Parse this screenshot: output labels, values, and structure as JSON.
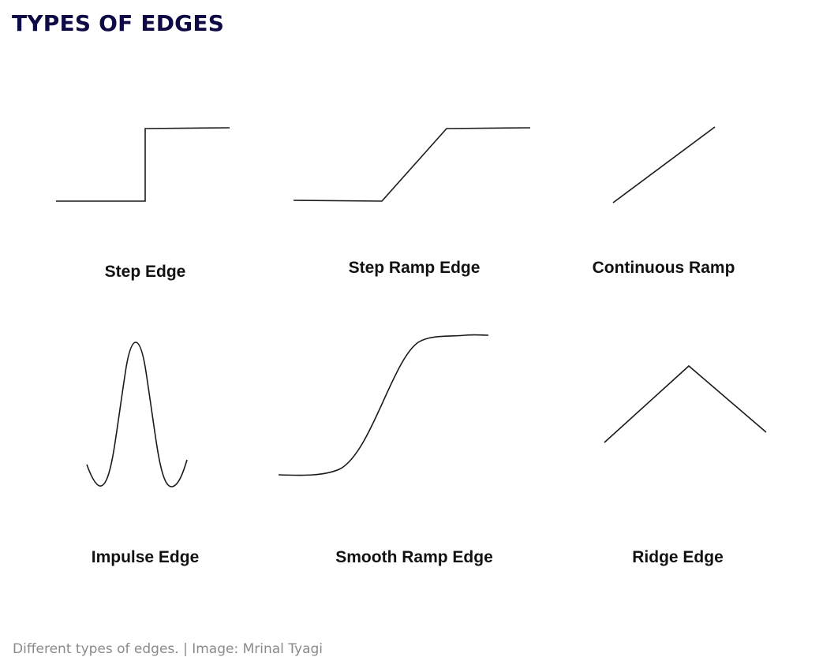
{
  "heading": "TYPES OF EDGES",
  "edges": [
    {
      "id": "step-edge",
      "label": "Step Edge"
    },
    {
      "id": "step-ramp-edge",
      "label": "Step Ramp Edge"
    },
    {
      "id": "continuous-ramp",
      "label": "Continuous Ramp"
    },
    {
      "id": "impulse-edge",
      "label": "Impulse Edge"
    },
    {
      "id": "smooth-ramp-edge",
      "label": "Smooth Ramp Edge"
    },
    {
      "id": "ridge-edge",
      "label": "Ridge Edge"
    }
  ],
  "caption": "Different types of edges. | Image: Mrinal Tyagi",
  "colors": {
    "heading": "#0e0a45",
    "line": "#1a1a1a",
    "label": "#111111",
    "caption": "#8a8a8a"
  }
}
